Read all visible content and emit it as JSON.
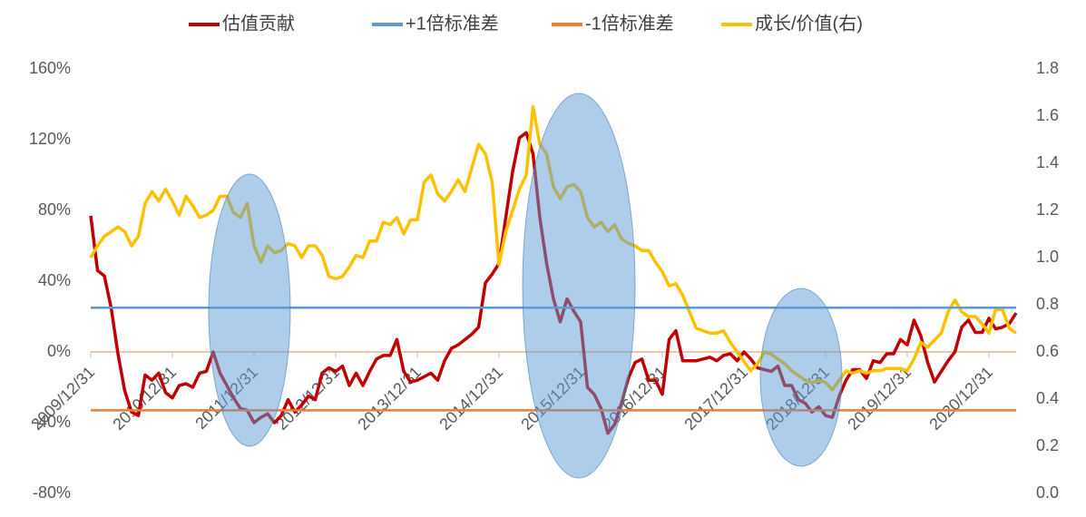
{
  "chart_data": {
    "type": "line",
    "categories": [
      "2009/12/31",
      null,
      null,
      null,
      null,
      null,
      null,
      null,
      null,
      null,
      null,
      null,
      "2010/12/31",
      null,
      null,
      null,
      null,
      null,
      null,
      null,
      null,
      null,
      null,
      null,
      "2011/12/31",
      null,
      null,
      null,
      null,
      null,
      null,
      null,
      null,
      null,
      null,
      null,
      "2012/12/31",
      null,
      null,
      null,
      null,
      null,
      null,
      null,
      null,
      null,
      null,
      null,
      "2013/12/31",
      null,
      null,
      null,
      null,
      null,
      null,
      null,
      null,
      null,
      null,
      null,
      "2014/12/31",
      null,
      null,
      null,
      null,
      null,
      null,
      null,
      null,
      null,
      null,
      null,
      "2015/12/31",
      null,
      null,
      null,
      null,
      null,
      null,
      null,
      null,
      null,
      null,
      null,
      "2016/12/31",
      null,
      null,
      null,
      null,
      null,
      null,
      null,
      null,
      null,
      null,
      null,
      "2017/12/31",
      null,
      null,
      null,
      null,
      null,
      null,
      null,
      null,
      null,
      null,
      null,
      "2018/12/31",
      null,
      null,
      null,
      null,
      null,
      null,
      null,
      null,
      null,
      null,
      null,
      "2019/12/31",
      null,
      null,
      null,
      null,
      null,
      null,
      null,
      null,
      null,
      null,
      null,
      "2020/12/31",
      null,
      null,
      null,
      null
    ],
    "series": [
      {
        "name": "估值贡献",
        "color": "#c00000",
        "values": [
          77,
          46,
          43,
          25,
          -1,
          -22,
          -34,
          -36,
          -13,
          -16,
          -12,
          -23,
          -26,
          -19,
          -18,
          -20,
          -12,
          -11,
          0,
          -12,
          -19,
          -26,
          -32,
          -33,
          -40,
          -37,
          -35,
          -40,
          -36,
          -27,
          -34,
          -30,
          -25,
          -27,
          -12,
          -9,
          -11,
          -8,
          -19,
          -12,
          -19,
          -11,
          -4,
          -2,
          -2,
          7,
          -11,
          -17,
          -16,
          -14,
          -12,
          -16,
          -5,
          2,
          4,
          7,
          10,
          14,
          39,
          44,
          50,
          76,
          102,
          121,
          124,
          112,
          76,
          50,
          30,
          17,
          30,
          23,
          17,
          -20,
          -24,
          -32,
          -46,
          -41,
          -29,
          -15,
          -6,
          -4,
          -16,
          -16,
          -24,
          7,
          12,
          -5,
          -5,
          -5,
          -4,
          -3,
          -5,
          -2,
          -1,
          -5,
          0,
          -4,
          -9,
          -10,
          -11,
          -8,
          -19,
          -19,
          -27,
          -29,
          -34,
          -31,
          -36,
          -37,
          -25,
          -16,
          -10,
          -10,
          -15,
          -5,
          -6,
          -1,
          -1,
          7,
          4,
          18,
          9,
          -6,
          -17,
          -11,
          -5,
          0,
          14,
          18,
          11,
          11,
          19,
          13,
          14,
          16,
          22
        ]
      },
      {
        "name": "+1倍标准差",
        "color": "#5b9bd5",
        "value": 25
      },
      {
        "name": "-1倍标准差",
        "color": "#ed7d31",
        "value": -33
      },
      {
        "name": "成长/价值(右)",
        "color": "#ffc000",
        "axis": "y2",
        "values": [
          1.0,
          1.05,
          1.09,
          1.11,
          1.13,
          1.11,
          1.05,
          1.09,
          1.23,
          1.28,
          1.24,
          1.29,
          1.24,
          1.18,
          1.26,
          1.22,
          1.17,
          1.18,
          1.2,
          1.26,
          1.26,
          1.19,
          1.17,
          1.23,
          1.05,
          0.98,
          1.05,
          1.02,
          1.03,
          1.06,
          1.05,
          1.0,
          1.05,
          1.05,
          1.01,
          0.92,
          0.91,
          0.92,
          0.96,
          1.01,
          1.0,
          1.07,
          1.07,
          1.15,
          1.14,
          1.17,
          1.1,
          1.16,
          1.16,
          1.32,
          1.35,
          1.27,
          1.24,
          1.28,
          1.33,
          1.28,
          1.38,
          1.48,
          1.44,
          1.32,
          0.97,
          1.11,
          1.2,
          1.29,
          1.35,
          1.64,
          1.48,
          1.44,
          1.3,
          1.25,
          1.3,
          1.31,
          1.28,
          1.17,
          1.13,
          1.15,
          1.11,
          1.14,
          1.08,
          1.06,
          1.05,
          1.03,
          1.03,
          0.98,
          0.94,
          0.88,
          0.89,
          0.84,
          0.77,
          0.7,
          0.69,
          0.68,
          0.68,
          0.69,
          0.64,
          0.6,
          0.56,
          0.52,
          0.55,
          0.6,
          0.59,
          0.57,
          0.55,
          0.52,
          0.5,
          0.48,
          0.47,
          0.48,
          0.47,
          0.44,
          0.48,
          0.52,
          0.51,
          0.52,
          0.51,
          0.52,
          0.52,
          0.53,
          0.53,
          0.53,
          0.52,
          0.57,
          0.64,
          0.62,
          0.65,
          0.68,
          0.77,
          0.82,
          0.77,
          0.75,
          0.75,
          0.72,
          0.68,
          0.78,
          0.78,
          0.7,
          0.68
        ]
      }
    ],
    "ylim": [
      -80,
      160
    ],
    "yticks": [
      {
        "value": -80,
        "label": "-80%"
      },
      {
        "value": -40,
        "label": "-40%"
      },
      {
        "value": 0,
        "label": "0%"
      },
      {
        "value": 40,
        "label": "40%"
      },
      {
        "value": 80,
        "label": "80%"
      },
      {
        "value": 120,
        "label": "120%"
      },
      {
        "value": 160,
        "label": "160%"
      }
    ],
    "y2lim": [
      0,
      1.8
    ],
    "y2ticks": [
      {
        "value": 0,
        "label": "0.0"
      },
      0.2,
      0.4,
      0.6,
      0.8,
      {
        "value": 1,
        "label": "1.0"
      },
      1.2,
      1.4,
      1.6,
      1.8
    ],
    "legend": "top"
  }
}
